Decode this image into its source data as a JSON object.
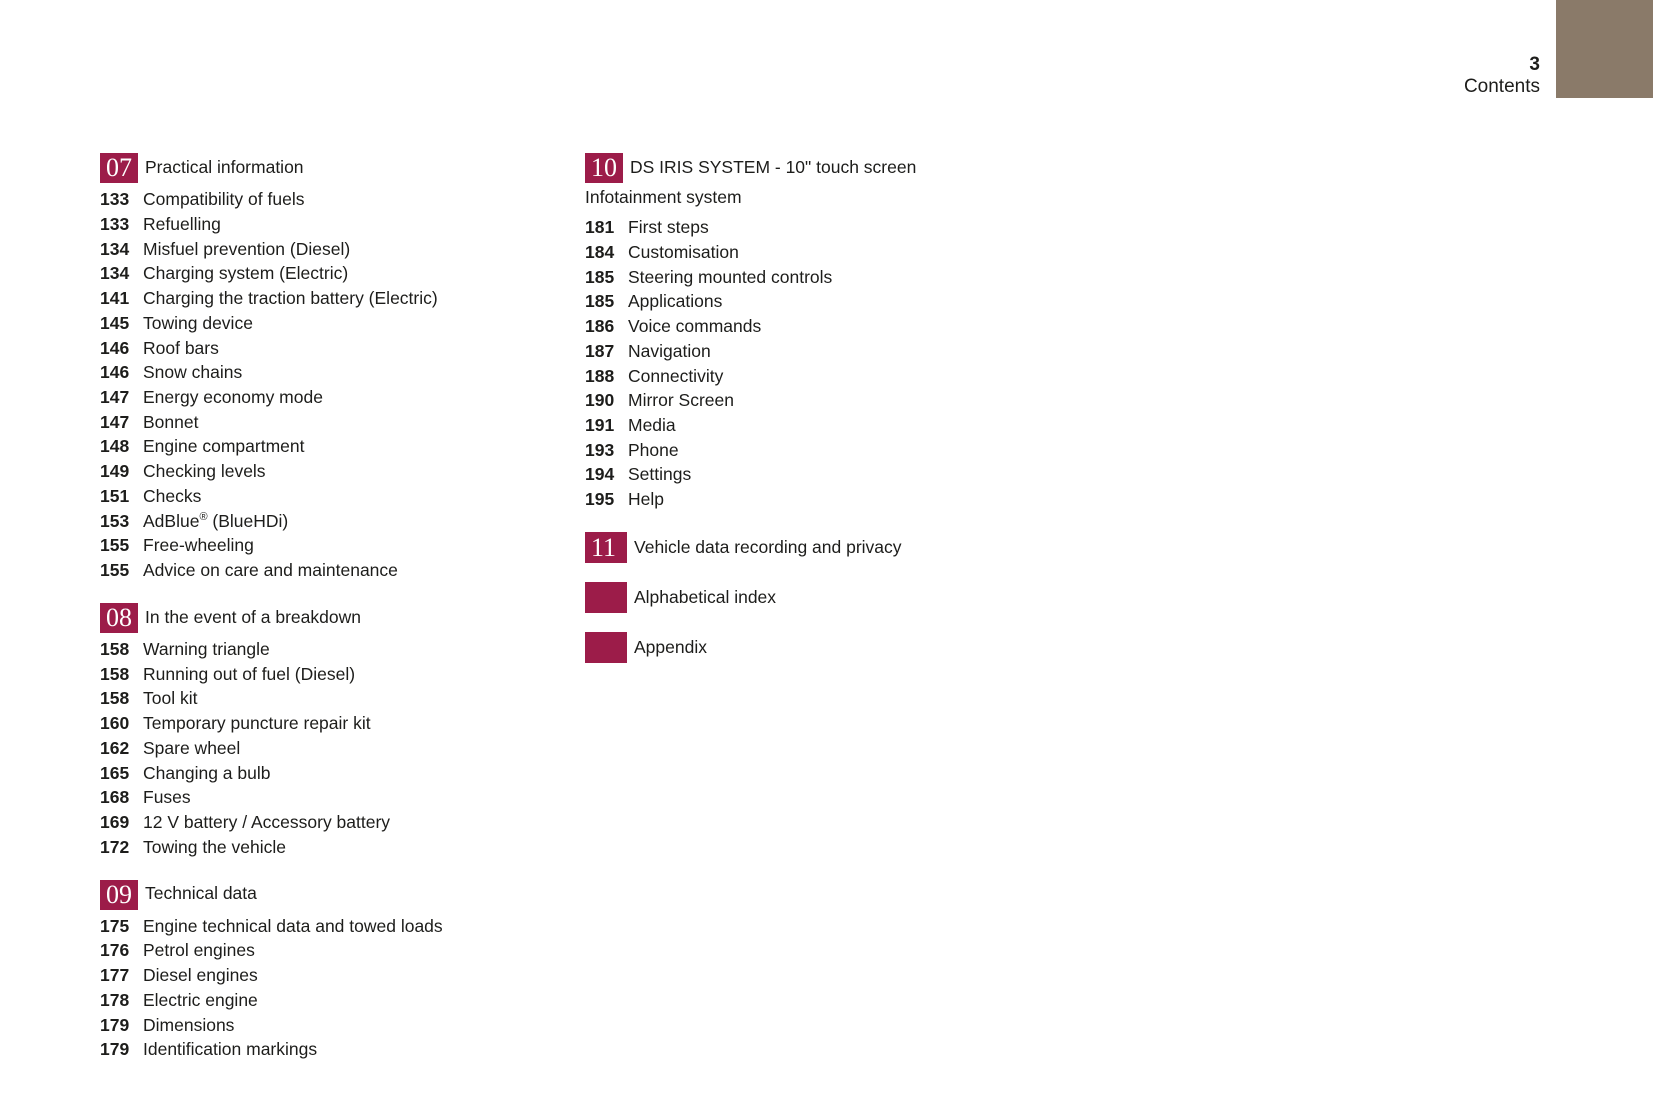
{
  "page": {
    "number": "3",
    "title": "Contents"
  },
  "colors": {
    "accent": "#9c1c49",
    "corner": "#8a7a69",
    "text": "#1d1d1b"
  },
  "toc": {
    "left": [
      {
        "num": "07",
        "title": "Practical information",
        "entries": [
          {
            "page": "133",
            "label": "Compatibility of fuels"
          },
          {
            "page": "133",
            "label": "Refuelling"
          },
          {
            "page": "134",
            "label": "Misfuel prevention (Diesel)"
          },
          {
            "page": "134",
            "label": "Charging system (Electric)"
          },
          {
            "page": "141",
            "label": "Charging the traction battery (Electric)"
          },
          {
            "page": "145",
            "label": "Towing device"
          },
          {
            "page": "146",
            "label": "Roof bars"
          },
          {
            "page": "146",
            "label": "Snow chains"
          },
          {
            "page": "147",
            "label": "Energy economy mode"
          },
          {
            "page": "147",
            "label": "Bonnet"
          },
          {
            "page": "148",
            "label": "Engine compartment"
          },
          {
            "page": "149",
            "label": "Checking levels"
          },
          {
            "page": "151",
            "label": "Checks"
          },
          {
            "page": "153",
            "label": "AdBlue® (BlueHDi)"
          },
          {
            "page": "155",
            "label": "Free-wheeling"
          },
          {
            "page": "155",
            "label": "Advice on care and maintenance"
          }
        ]
      },
      {
        "num": "08",
        "title": "In the event of a breakdown",
        "entries": [
          {
            "page": "158",
            "label": "Warning triangle"
          },
          {
            "page": "158",
            "label": "Running out of fuel (Diesel)"
          },
          {
            "page": "158",
            "label": "Tool kit"
          },
          {
            "page": "160",
            "label": "Temporary puncture repair kit"
          },
          {
            "page": "162",
            "label": "Spare wheel"
          },
          {
            "page": "165",
            "label": "Changing a bulb"
          },
          {
            "page": "168",
            "label": "Fuses"
          },
          {
            "page": "169",
            "label": "12 V battery / Accessory battery"
          },
          {
            "page": "172",
            "label": "Towing the vehicle"
          }
        ]
      },
      {
        "num": "09",
        "title": "Technical data",
        "entries": [
          {
            "page": "175",
            "label": "Engine technical data and towed loads"
          },
          {
            "page": "176",
            "label": "Petrol engines"
          },
          {
            "page": "177",
            "label": "Diesel engines"
          },
          {
            "page": "178",
            "label": "Electric engine"
          },
          {
            "page": "179",
            "label": "Dimensions"
          },
          {
            "page": "179",
            "label": "Identification markings"
          }
        ]
      }
    ],
    "right": [
      {
        "num": "10",
        "title": "DS IRIS SYSTEM - 10\" touch screen Infotainment system",
        "entries": [
          {
            "page": "181",
            "label": "First steps"
          },
          {
            "page": "184",
            "label": "Customisation"
          },
          {
            "page": "185",
            "label": "Steering mounted controls"
          },
          {
            "page": "185",
            "label": "Applications"
          },
          {
            "page": "186",
            "label": "Voice commands"
          },
          {
            "page": "187",
            "label": "Navigation"
          },
          {
            "page": "188",
            "label": "Connectivity"
          },
          {
            "page": "190",
            "label": "Mirror Screen"
          },
          {
            "page": "191",
            "label": "Media"
          },
          {
            "page": "193",
            "label": "Phone"
          },
          {
            "page": "194",
            "label": "Settings"
          },
          {
            "page": "195",
            "label": "Help"
          }
        ]
      }
    ],
    "specials": [
      {
        "num": "11",
        "label": "Vehicle data recording and privacy"
      },
      {
        "num": "",
        "label": "Alphabetical index"
      },
      {
        "num": "",
        "label": "Appendix"
      }
    ]
  }
}
